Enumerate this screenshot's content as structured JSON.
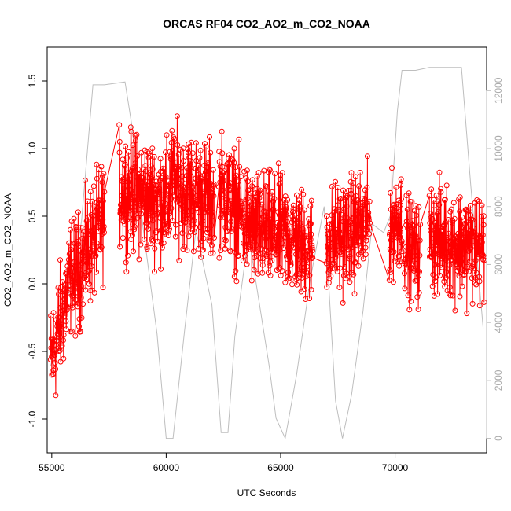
{
  "chart_data": {
    "type": "line",
    "title": "ORCAS RF04 CO2_AO2_m_CO2_NOAA",
    "xlabel": "UTC Seconds",
    "ylabel": "CO2_AO2_m_CO2_NOAA",
    "xlim": [
      54800,
      74000
    ],
    "ylim": [
      -1.25,
      1.75
    ],
    "y2lim": [
      -500,
      13500
    ],
    "x_ticks": [
      "55000",
      "60000",
      "65000",
      "70000"
    ],
    "y_ticks": [
      "-1.0",
      "-0.5",
      "0.0",
      "0.5",
      "1.0",
      "1.5"
    ],
    "y2_ticks": [
      "0",
      "2000",
      "4000",
      "6000",
      "8000",
      "10000",
      "12000"
    ],
    "grid": false,
    "legend": "none",
    "colors": {
      "primary": "#ff0000",
      "secondary": "#bebebe"
    },
    "series": [
      {
        "axis": "left",
        "style": "line+open-circles",
        "segments": [
          {
            "x_start": 54950,
            "x_end": 55900,
            "n": 90,
            "y_start": -0.6,
            "y_end": 0.1,
            "spread": 0.35
          },
          {
            "x_start": 55900,
            "x_end": 57300,
            "n": 140,
            "y_start": 0.0,
            "y_end": 0.5,
            "spread": 0.35
          },
          {
            "x_start": 57950,
            "x_end": 60150,
            "n": 220,
            "y_start": 0.7,
            "y_end": 0.6,
            "spread": 0.35
          },
          {
            "x_start": 60150,
            "x_end": 62100,
            "n": 190,
            "y_start": 0.75,
            "y_end": 0.6,
            "spread": 0.35
          },
          {
            "x_start": 62300,
            "x_end": 63800,
            "n": 150,
            "y_start": 0.7,
            "y_end": 0.4,
            "spread": 0.35
          },
          {
            "x_start": 63800,
            "x_end": 65300,
            "n": 150,
            "y_start": 0.4,
            "y_end": 0.35,
            "spread": 0.35
          },
          {
            "x_start": 65300,
            "x_end": 66400,
            "n": 110,
            "y_start": 0.35,
            "y_end": 0.25,
            "spread": 0.33
          },
          {
            "x_start": 67000,
            "x_end": 68900,
            "n": 180,
            "y_start": 0.3,
            "y_end": 0.45,
            "spread": 0.33
          },
          {
            "x_start": 69750,
            "x_end": 70300,
            "n": 60,
            "y_start": 0.4,
            "y_end": 0.5,
            "spread": 0.3
          },
          {
            "x_start": 70400,
            "x_end": 71100,
            "n": 60,
            "y_start": 0.3,
            "y_end": 0.2,
            "spread": 0.3
          },
          {
            "x_start": 71500,
            "x_end": 73900,
            "n": 230,
            "y_start": 0.35,
            "y_end": 0.25,
            "spread": 0.33
          }
        ]
      },
      {
        "axis": "right",
        "style": "line",
        "x": [
          54950,
          55400,
          55900,
          56300,
          56800,
          57300,
          58200,
          58500,
          59000,
          59600,
          60000,
          60300,
          60800,
          61300,
          62000,
          62400,
          62700,
          63000,
          63600,
          64100,
          64500,
          64800,
          65200,
          65700,
          66300,
          66900,
          67400,
          67700,
          68100,
          68600,
          69000,
          69500,
          69800,
          70100,
          70300,
          70600,
          70900,
          71500,
          72300,
          72900,
          73300,
          73850
        ],
        "y": [
          2500,
          3800,
          5600,
          7500,
          12200,
          12200,
          12300,
          10800,
          7200,
          3600,
          0,
          0,
          3700,
          7200,
          4600,
          200,
          200,
          3500,
          7000,
          4500,
          2500,
          700,
          0,
          2200,
          5500,
          8000,
          1300,
          0,
          1500,
          4400,
          7400,
          7100,
          7700,
          11300,
          12700,
          12700,
          12700,
          12800,
          12800,
          12800,
          8800,
          3800
        ]
      }
    ]
  }
}
